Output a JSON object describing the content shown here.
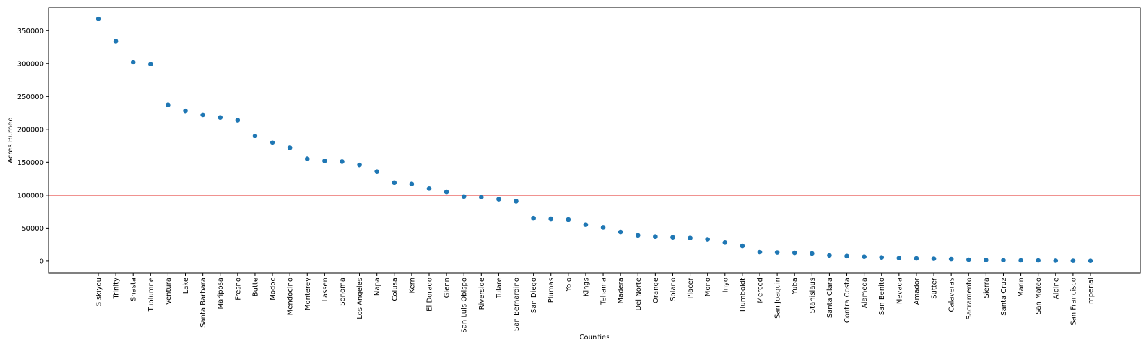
{
  "chart_data": {
    "type": "scatter",
    "title": "",
    "xlabel": "Counties",
    "ylabel": "Acres Burned",
    "ylim": [
      -18000,
      385000
    ],
    "yticks": [
      0,
      50000,
      100000,
      150000,
      200000,
      250000,
      300000,
      350000
    ],
    "grid": false,
    "marker_color": "#1f77b4",
    "reference_line": {
      "y": 100000,
      "color": "#e8504d"
    },
    "categories": [
      "Siskiyou",
      "Trinity",
      "Shasta",
      "Tuolumne",
      "Ventura",
      "Lake",
      "Santa Barbara",
      "Mariposa",
      "Fresno",
      "Butte",
      "Modoc",
      "Mendocino",
      "Monterey",
      "Lassen",
      "Sonoma",
      "Los Angeles",
      "Napa",
      "Colusa",
      "Kern",
      "El Dorado",
      "Glenn",
      "San Luis Obispo",
      "Riverside",
      "Tulare",
      "San Bernardino",
      "San Diego",
      "Plumas",
      "Yolo",
      "Kings",
      "Tehama",
      "Madera",
      "Del Norte",
      "Orange",
      "Solano",
      "Placer",
      "Mono",
      "Inyo",
      "Humboldt",
      "Merced",
      "San Joaquin",
      "Yuba",
      "Stanislaus",
      "Santa Clara",
      "Contra Costa",
      "Alameda",
      "San Benito",
      "Nevada",
      "Amador",
      "Sutter",
      "Calaveras",
      "Sacramento",
      "Sierra",
      "Santa Cruz",
      "Marin",
      "San Mateo",
      "Alpine",
      "San Francisco",
      "Imperial"
    ],
    "values": [
      368000,
      334000,
      302000,
      299000,
      237000,
      228000,
      222000,
      218000,
      214000,
      190000,
      180000,
      172000,
      155000,
      152000,
      151000,
      146000,
      136000,
      119000,
      117000,
      110000,
      105000,
      98000,
      97000,
      94000,
      91000,
      65000,
      64000,
      63000,
      55000,
      51000,
      44000,
      39000,
      37000,
      36000,
      35000,
      33000,
      28000,
      23000,
      13500,
      13000,
      12500,
      11500,
      8500,
      7500,
      6500,
      5500,
      4500,
      4000,
      3500,
      3000,
      2000,
      1500,
      1200,
      1000,
      900,
      500,
      300,
      200
    ]
  }
}
